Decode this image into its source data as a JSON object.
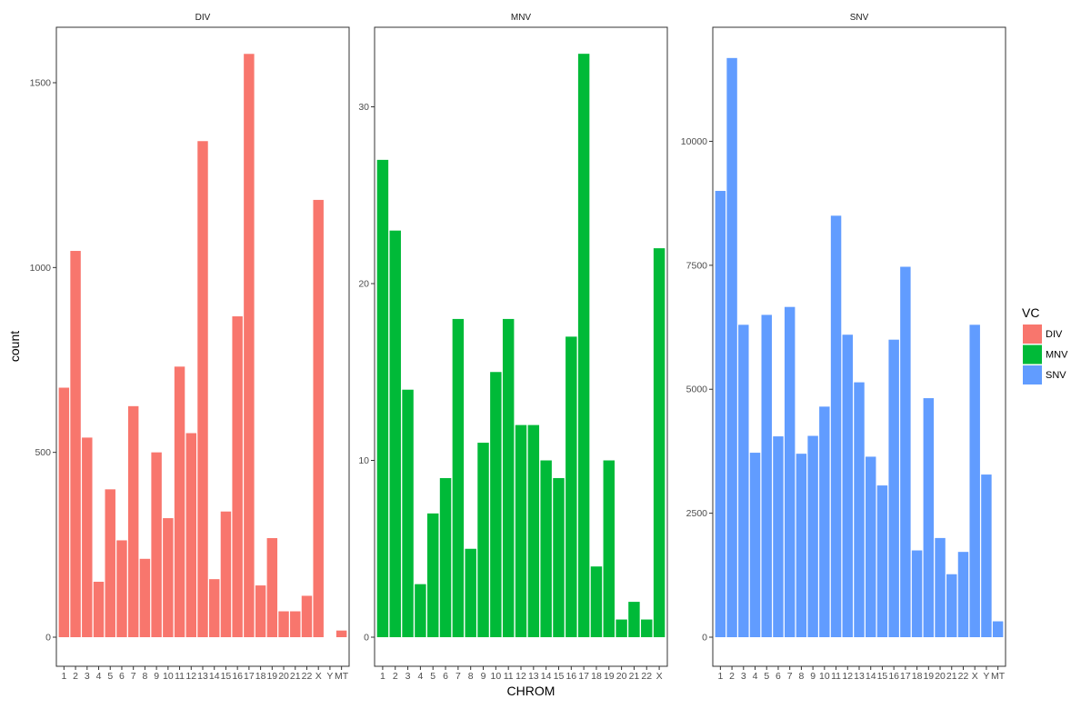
{
  "chart_data": {
    "type": "bar",
    "faceted": true,
    "xlabel": "CHROM",
    "ylabel": "count",
    "legend": {
      "title": "VC",
      "position": "right",
      "entries": [
        {
          "label": "DIV",
          "color": "#F8766D"
        },
        {
          "label": "MNV",
          "color": "#00BA38"
        },
        {
          "label": "SNV",
          "color": "#619CFF"
        }
      ]
    },
    "grid": false,
    "panels": [
      {
        "title": "DIV",
        "color": "#F8766D",
        "categories": [
          "1",
          "2",
          "3",
          "4",
          "5",
          "6",
          "7",
          "8",
          "9",
          "10",
          "11",
          "12",
          "13",
          "14",
          "15",
          "16",
          "17",
          "18",
          "19",
          "20",
          "21",
          "22",
          "X",
          "Y",
          "MT"
        ],
        "values": [
          675,
          1045,
          540,
          150,
          400,
          262,
          625,
          212,
          500,
          322,
          732,
          552,
          1342,
          157,
          340,
          868,
          1578,
          140,
          268,
          70,
          70,
          112,
          1183,
          0,
          18
        ],
        "ylim": [
          0,
          1650
        ],
        "yticks": [
          0,
          500,
          1000,
          1500
        ]
      },
      {
        "title": "MNV",
        "color": "#00BA38",
        "categories": [
          "1",
          "2",
          "3",
          "4",
          "5",
          "6",
          "7",
          "8",
          "9",
          "10",
          "11",
          "12",
          "13",
          "14",
          "15",
          "16",
          "17",
          "18",
          "19",
          "20",
          "21",
          "22",
          "X"
        ],
        "values": [
          27,
          23,
          14,
          3,
          7,
          9,
          18,
          5,
          11,
          15,
          18,
          12,
          12,
          10,
          9,
          17,
          33,
          4,
          10,
          1,
          2,
          1,
          22
        ],
        "ylim": [
          0,
          34.5
        ],
        "yticks": [
          0,
          10,
          20,
          30
        ]
      },
      {
        "title": "SNV",
        "color": "#619CFF",
        "categories": [
          "1",
          "2",
          "3",
          "4",
          "5",
          "6",
          "7",
          "8",
          "9",
          "10",
          "11",
          "12",
          "13",
          "14",
          "15",
          "16",
          "17",
          "18",
          "19",
          "20",
          "21",
          "22",
          "X",
          "Y",
          "MT"
        ],
        "values": [
          9000,
          11680,
          6300,
          3720,
          6500,
          4050,
          6660,
          3700,
          4060,
          4650,
          8500,
          6100,
          5140,
          3640,
          3060,
          6000,
          7470,
          1750,
          4820,
          2000,
          1270,
          1720,
          6300,
          3280,
          320
        ],
        "ylim": [
          0,
          12300
        ],
        "yticks": [
          0,
          2500,
          5000,
          7500,
          10000
        ]
      }
    ]
  }
}
